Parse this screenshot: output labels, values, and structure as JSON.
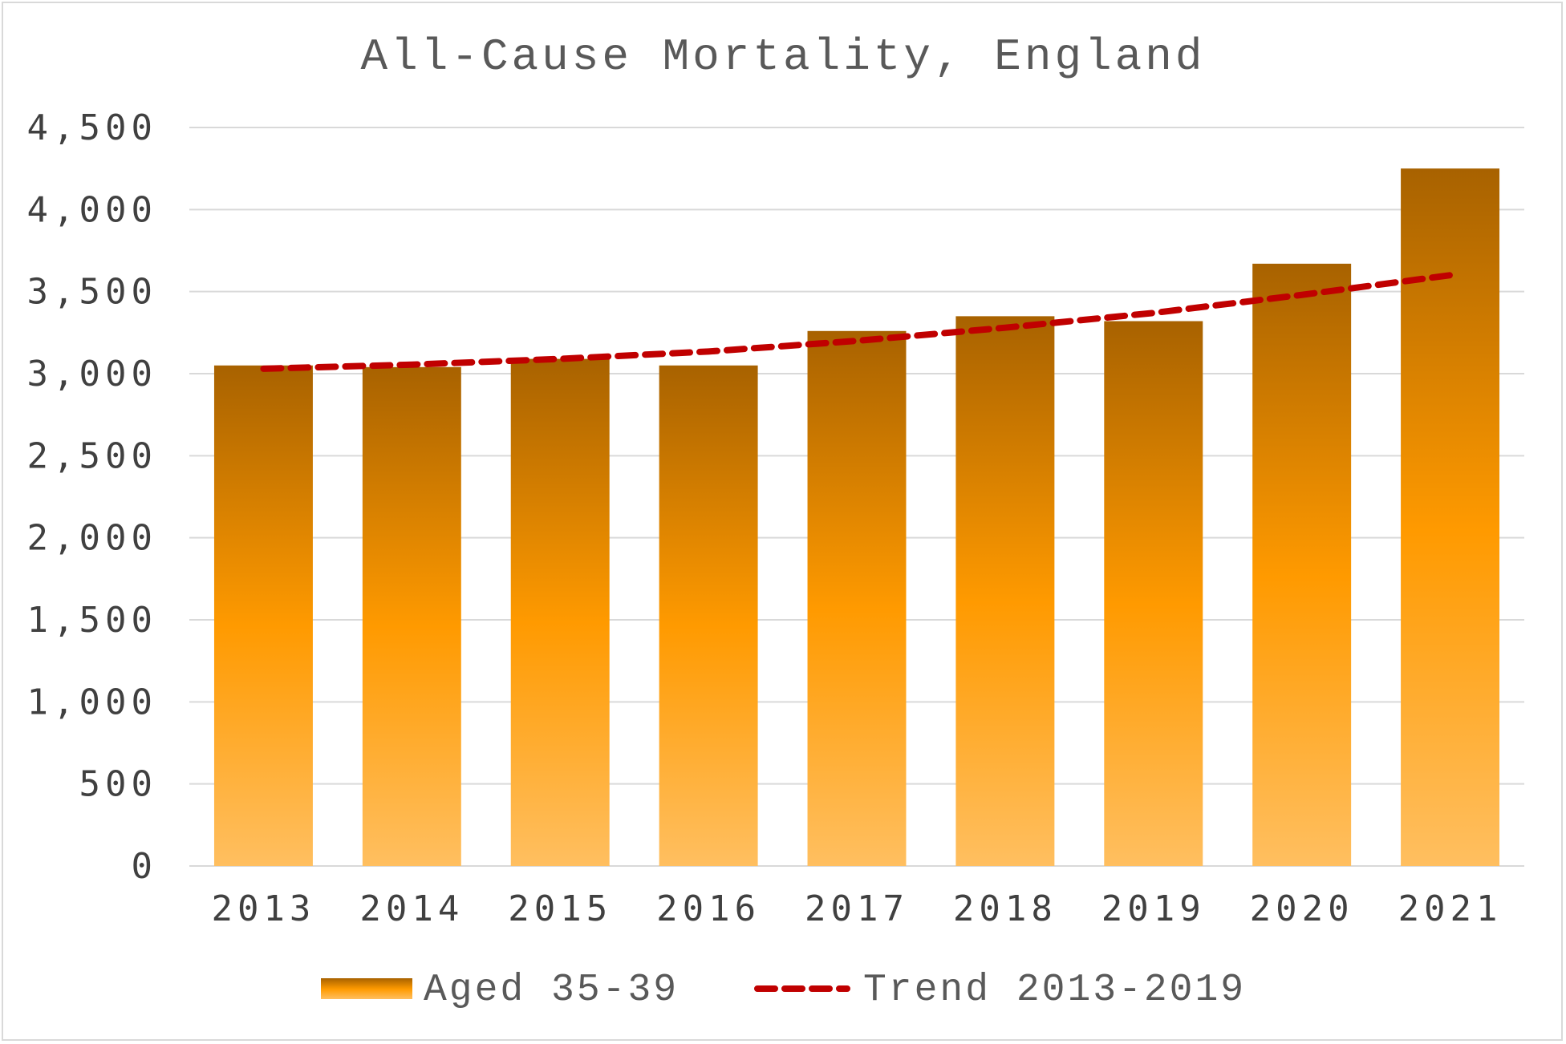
{
  "chart_data": {
    "type": "bar",
    "title": "All-Cause Mortality, England",
    "xlabel": "",
    "ylabel": "",
    "categories": [
      "2013",
      "2014",
      "2015",
      "2016",
      "2017",
      "2018",
      "2019",
      "2020",
      "2021"
    ],
    "series": [
      {
        "name": "Aged 35-39",
        "type": "bar",
        "values": [
          3050,
          3040,
          3090,
          3050,
          3260,
          3350,
          3320,
          3670,
          4250
        ]
      },
      {
        "name": "Trend 2013-2019",
        "type": "line",
        "style": "dashed",
        "values": [
          3030,
          3055,
          3090,
          3135,
          3200,
          3280,
          3370,
          3480,
          3600
        ]
      }
    ],
    "ylim": [
      0,
      4500
    ],
    "yticks": [
      0,
      500,
      1000,
      1500,
      2000,
      2500,
      3000,
      3500,
      4000,
      4500
    ],
    "ytick_labels": [
      "0",
      "500",
      "1,000",
      "1,500",
      "2,000",
      "2,500",
      "3,000",
      "3,500",
      "4,000",
      "4,500"
    ],
    "grid": true,
    "legend_position": "bottom",
    "colors": {
      "bar_top": "#A86200",
      "bar_mid": "#FF9A00",
      "bar_bottom": "#FFBF60",
      "trend": "#C00000",
      "grid": "#D9D9D9"
    }
  }
}
